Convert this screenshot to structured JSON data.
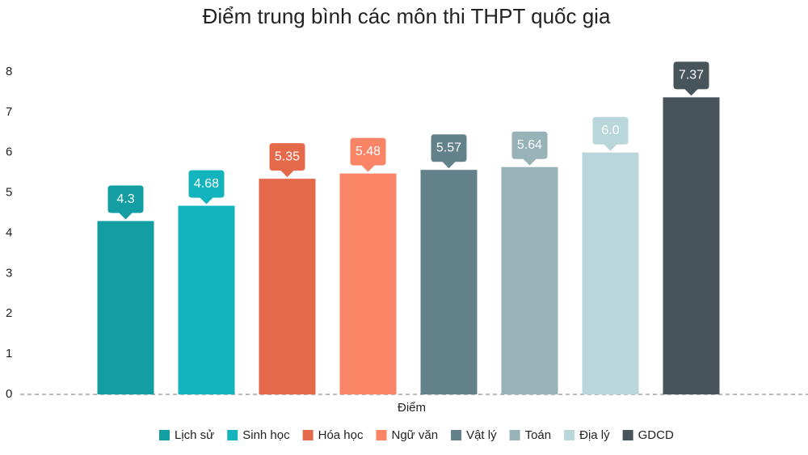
{
  "chart_data": {
    "type": "bar",
    "title": "Điểm trung bình các môn thi THPT quốc gia",
    "categories": [
      "Điểm"
    ],
    "series": [
      {
        "name": "Lịch sử",
        "color": "#129ea3",
        "values": [
          4.3
        ]
      },
      {
        "name": "Sinh học",
        "color": "#14b4be",
        "values": [
          4.68
        ]
      },
      {
        "name": "Hóa học",
        "color": "#e46a4b",
        "values": [
          5.35
        ]
      },
      {
        "name": "Ngữ văn",
        "color": "#f98466",
        "values": [
          5.48
        ]
      },
      {
        "name": "Vật lý",
        "color": "#62818a",
        "values": [
          5.57
        ]
      },
      {
        "name": "Toán",
        "color": "#97b3b8",
        "values": [
          5.64
        ]
      },
      {
        "name": "Địa lý",
        "color": "#b9d6da",
        "values": [
          6
        ],
        "value_labels": [
          "6.0"
        ]
      },
      {
        "name": "GDCD",
        "color": "#47555a",
        "values": [
          7.37
        ]
      }
    ],
    "ylim": [
      0,
      8
    ],
    "yticks": [
      0,
      1,
      2,
      3,
      4,
      5,
      6,
      7,
      8
    ],
    "grid": false,
    "legend": "bottom"
  }
}
